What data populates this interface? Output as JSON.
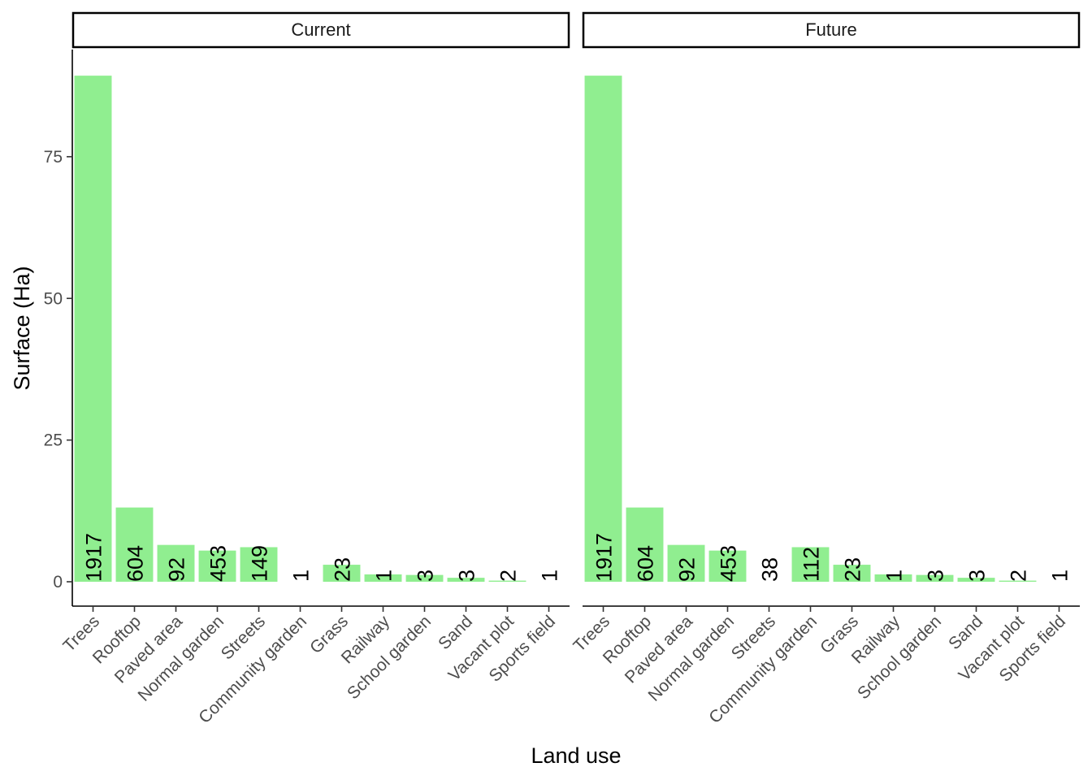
{
  "chart_data": {
    "type": "bar",
    "xlabel": "Land use",
    "ylabel": "Surface (Ha)",
    "ylim": [
      0,
      90
    ],
    "yticks": [
      0,
      25,
      50,
      75
    ],
    "grid": false,
    "bar_color": "#90EE90",
    "categories": [
      "Trees",
      "Rooftop",
      "Paved area",
      "Normal garden",
      "Streets",
      "Community garden",
      "Grass",
      "Railway",
      "School garden",
      "Sand",
      "Vacant plot",
      "Sports field"
    ],
    "panels": [
      {
        "title": "Current",
        "values": [
          89.3,
          13.1,
          6.5,
          5.5,
          6.1,
          0.0,
          3.0,
          1.3,
          1.2,
          0.7,
          0.2,
          0.0
        ],
        "labels": [
          "1917",
          "604",
          "92",
          "453",
          "149",
          "1",
          "23",
          "1",
          "3",
          "3",
          "2",
          "1"
        ]
      },
      {
        "title": "Future",
        "values": [
          89.3,
          13.1,
          6.5,
          5.5,
          0.0,
          6.1,
          3.0,
          1.3,
          1.2,
          0.7,
          0.2,
          0.0
        ],
        "labels": [
          "1917",
          "604",
          "92",
          "453",
          "38",
          "112",
          "23",
          "1",
          "3",
          "3",
          "2",
          "1"
        ]
      }
    ]
  }
}
